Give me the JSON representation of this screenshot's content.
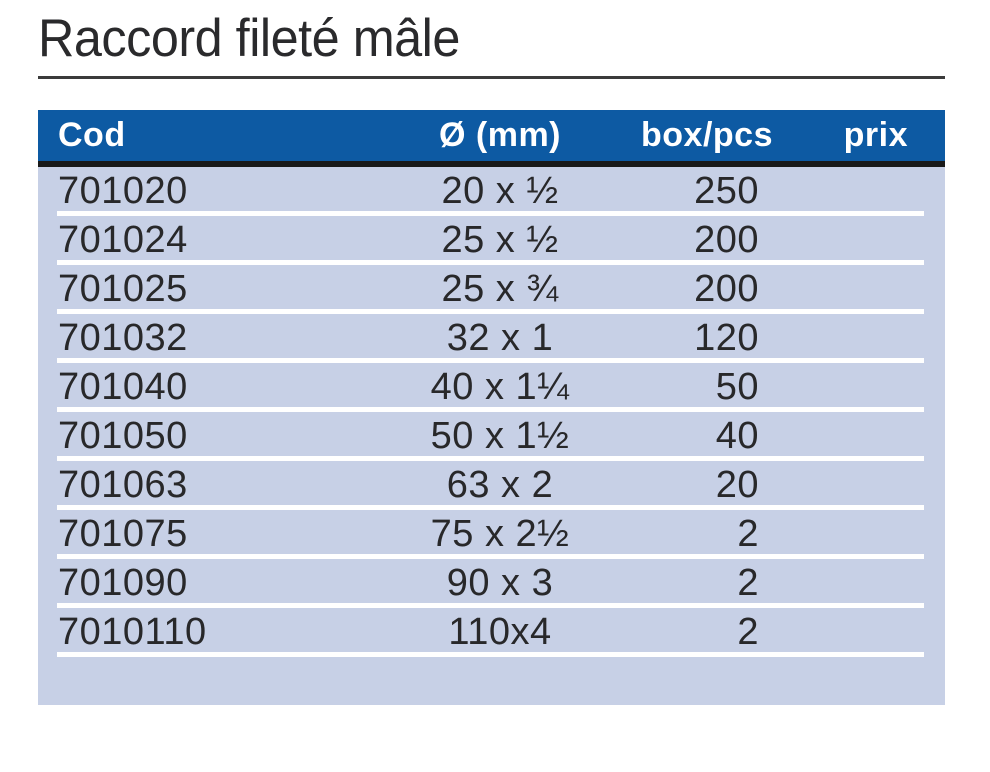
{
  "page": {
    "title": "Raccord fileté mâle"
  },
  "colors": {
    "header_blue": "#0d5aa3",
    "row_background": "#c7d0e6",
    "heavy_rule": "#191919",
    "title_rule": "#3b3b3b",
    "header_text": "#ffffff",
    "body_text": "#28282a"
  },
  "table": {
    "columns": [
      "Cod",
      "Ø (mm)",
      "box/pcs",
      "prix"
    ],
    "rows": [
      {
        "cod": "701020",
        "diameter": "20 x ½",
        "box": "250",
        "prix": ""
      },
      {
        "cod": "701024",
        "diameter": "25 x ½",
        "box": "200",
        "prix": ""
      },
      {
        "cod": "701025",
        "diameter": "25 x ¾",
        "box": "200",
        "prix": ""
      },
      {
        "cod": "701032",
        "diameter": "32 x 1",
        "box": "120",
        "prix": ""
      },
      {
        "cod": "701040",
        "diameter": "40 x 1¼",
        "box": "50",
        "prix": ""
      },
      {
        "cod": "701050",
        "diameter": "50 x 1½",
        "box": "40",
        "prix": ""
      },
      {
        "cod": "701063",
        "diameter": "63 x 2",
        "box": "20",
        "prix": ""
      },
      {
        "cod": "701075",
        "diameter": "75 x 2½",
        "box": "2",
        "prix": ""
      },
      {
        "cod": "701090",
        "diameter": "90 x 3",
        "box": "2",
        "prix": ""
      },
      {
        "cod": "7010110",
        "diameter": "110x4",
        "box": "2",
        "prix": ""
      }
    ]
  }
}
